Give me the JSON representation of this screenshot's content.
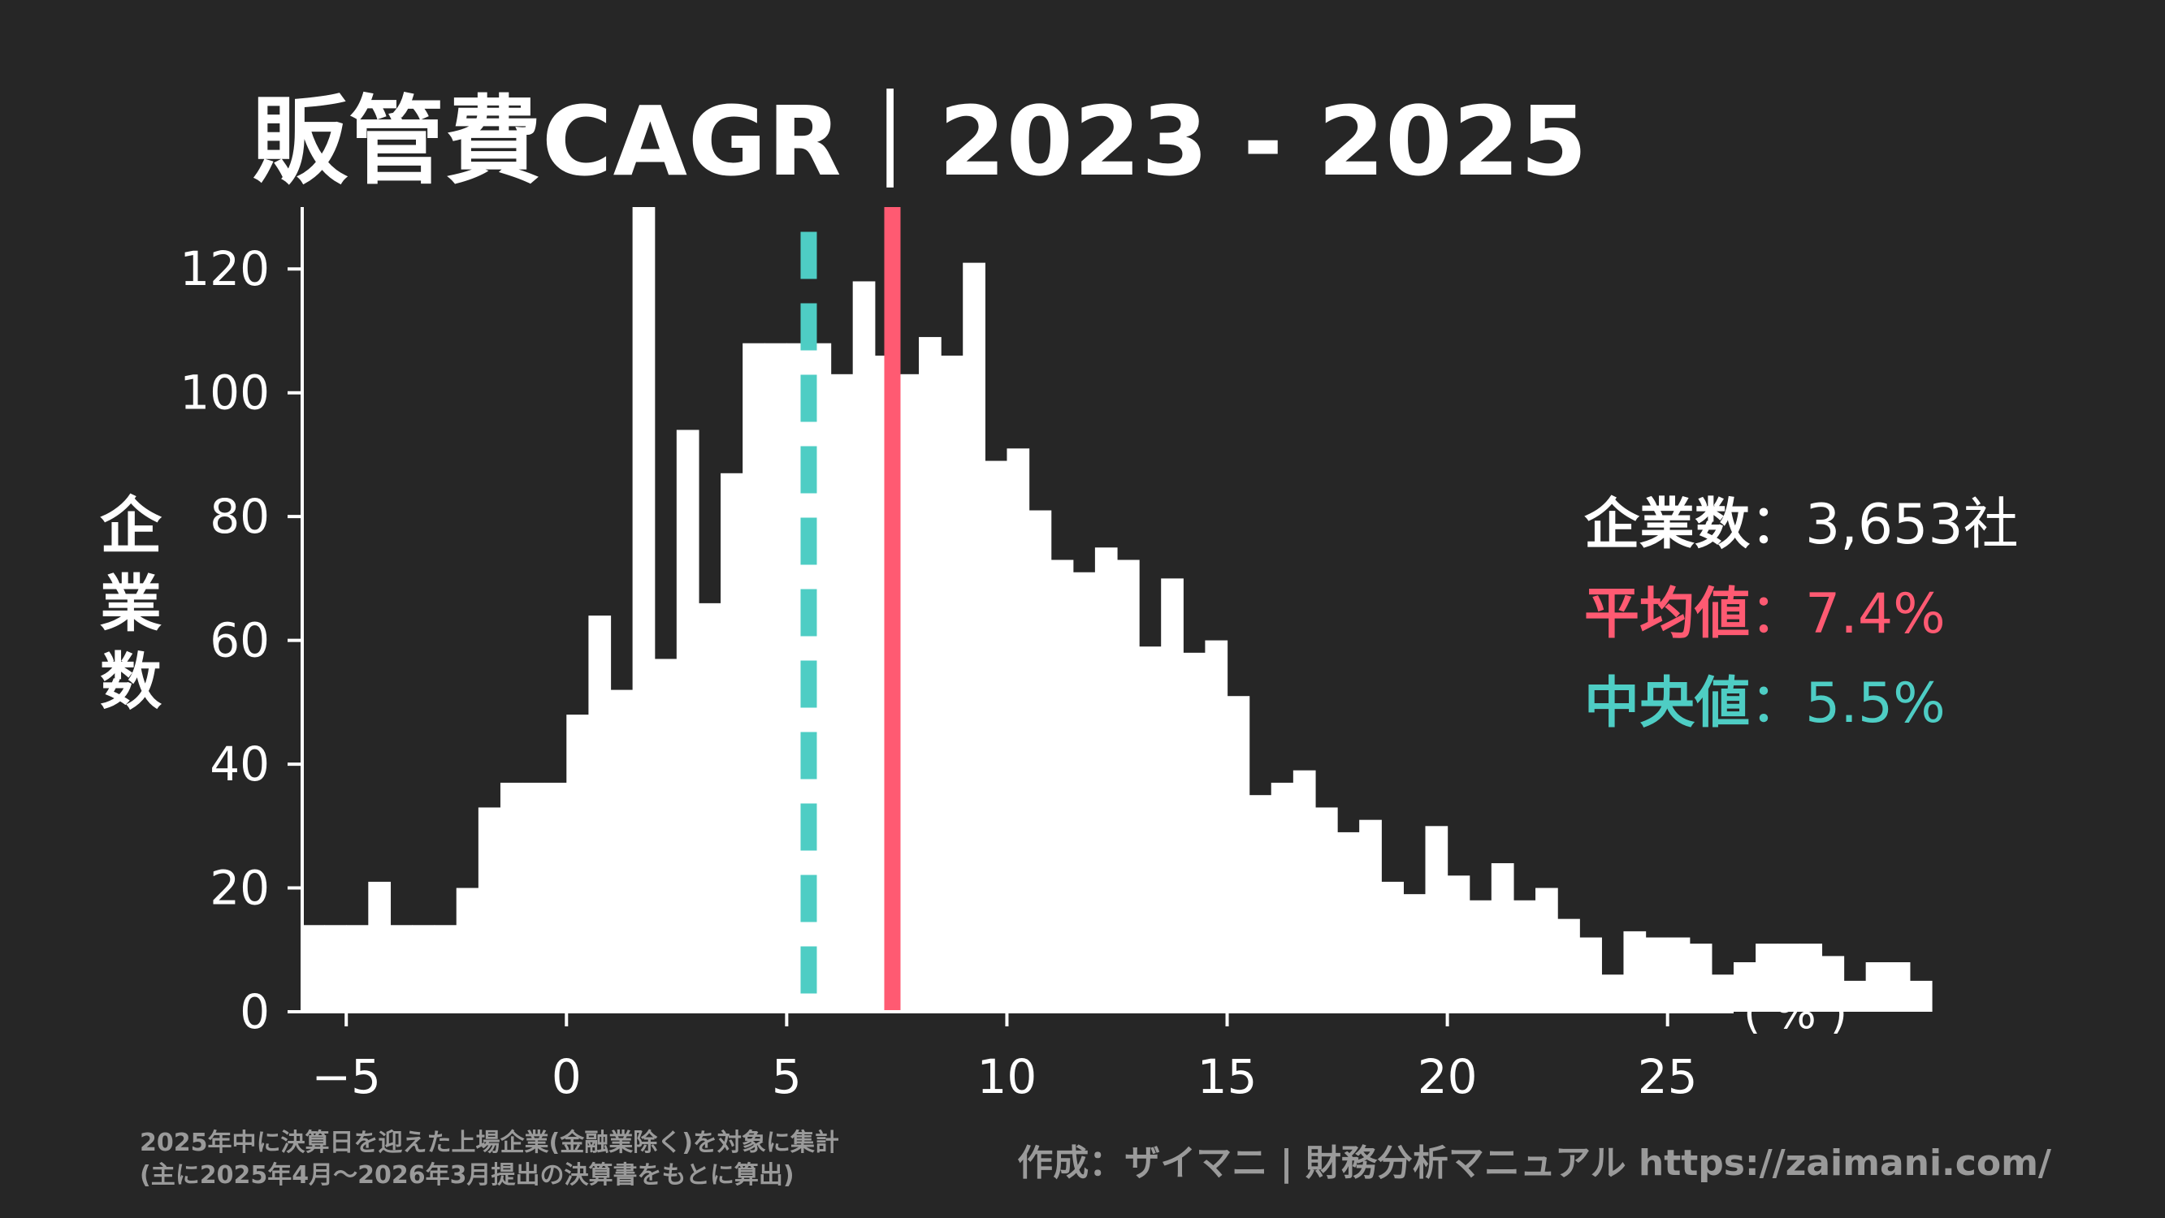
{
  "chart_data": {
    "type": "bar",
    "title": "販管費CAGR｜2023 - 2025",
    "ylabel": "企業数",
    "xunit": "( % )",
    "xlim": [
      -6,
      26.5
    ],
    "ylim": [
      0,
      130
    ],
    "bin_width": 0.5,
    "bin_start": -6,
    "counts": [
      14,
      14,
      14,
      21,
      14,
      14,
      14,
      20,
      33,
      37,
      37,
      37,
      48,
      64,
      52,
      130,
      57,
      94,
      66,
      87,
      108,
      108,
      108,
      108,
      103,
      118,
      106,
      103,
      109,
      106,
      121,
      89,
      91,
      81,
      73,
      71,
      75,
      73,
      59,
      70,
      58,
      60,
      51,
      35,
      37,
      39,
      33,
      29,
      31,
      21,
      19,
      30,
      22,
      18,
      24,
      18,
      20,
      15,
      12,
      6,
      13,
      12,
      12,
      11,
      6,
      8,
      11,
      11,
      11,
      9,
      5,
      8,
      8,
      5
    ],
    "xticks": [
      -5,
      0,
      5,
      10,
      15,
      20,
      25
    ],
    "xtick_labels": [
      "−5",
      "0",
      "5",
      "10",
      "15",
      "20",
      "25"
    ],
    "yticks": [
      0,
      20,
      40,
      60,
      80,
      100,
      120
    ],
    "ytick_labels": [
      "0",
      "20",
      "40",
      "60",
      "80",
      "100",
      "120"
    ],
    "mean": 7.4,
    "median": 5.5,
    "colors": {
      "background": "#262626",
      "bars": "#ffffff",
      "mean": "#ff5a72",
      "median": "#4ecdc4",
      "muted": "#9a9a9a"
    }
  },
  "stats": {
    "count_label": "企業数",
    "count_value": "：3,653社",
    "mean_label": "平均値",
    "mean_value": "：7.4%",
    "median_label": "中央値",
    "median_value": "：5.5%"
  },
  "footer": {
    "note_line1": "2025年中に決算日を迎えた上場企業(金融業除く)を対象に集計",
    "note_line2": "(主に2025年4月〜2026年3月提出の決算書をもとに算出)",
    "credit": "作成：ザイマニ | 財務分析マニュアル https://zaimani.com/"
  }
}
